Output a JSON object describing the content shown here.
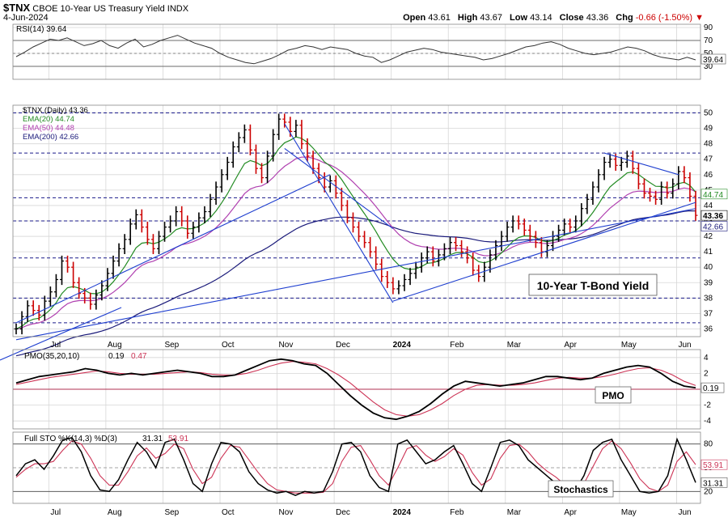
{
  "header": {
    "symbol": "$TNX",
    "description": "CBOE 10-Year US Treasury Yield INDX",
    "date": "4-Jun-2024",
    "open_label": "Open",
    "open": "43.61",
    "high_label": "High",
    "high": "43.67",
    "low_label": "Low",
    "low": "43.14",
    "close_label": "Close",
    "close": "43.36",
    "chg_label": "Chg",
    "chg": "-0.66 (-1.50%)",
    "chg_arrow": "▼"
  },
  "colors": {
    "price_up": "#000000",
    "price_down": "#cc0000",
    "ema20": "#228b22",
    "ema50": "#b040b0",
    "ema200": "#1a1a7a",
    "trendline": "#1f3fcf",
    "dash_line": "#1a1a8a",
    "grid": "#d6d6d6",
    "pmo_line": "#000000",
    "pmo_signal": "#cc3355",
    "sto_k": "#000000",
    "sto_d": "#cc3355",
    "zero_line": "#b03050"
  },
  "chart_data": [
    {
      "panel": "rsi",
      "type": "line",
      "legend": "RSI(14) 39.64",
      "last_value": "39.64",
      "ylim": [
        10,
        95
      ],
      "y_ticks": [
        90,
        70,
        50,
        30
      ],
      "reference_lines": [
        70,
        50,
        30
      ],
      "values": [
        45,
        52,
        60,
        66,
        72,
        70,
        74,
        68,
        62,
        65,
        70,
        62,
        58,
        66,
        72,
        60,
        64,
        70,
        74,
        78,
        72,
        66,
        62,
        58,
        50,
        44,
        40,
        36,
        34,
        38,
        42,
        48,
        55,
        58,
        62,
        60,
        56,
        60,
        58,
        56,
        50,
        46,
        44,
        36,
        40,
        46,
        52,
        55,
        58,
        56,
        52,
        50,
        48,
        46,
        44,
        40,
        42,
        46,
        50,
        55,
        60,
        62,
        66,
        68,
        64,
        58,
        54,
        50,
        48,
        50,
        52,
        56,
        60,
        58,
        54,
        48,
        44,
        42,
        40,
        44,
        40
      ]
    },
    {
      "panel": "price",
      "type": "candlestick",
      "legend": [
        "$TNX (Daily) 43.36",
        "EMA(20) 44.74",
        "EMA(50) 44.48",
        "EMA(200) 42.66"
      ],
      "last_value": "43.36",
      "ema20_label": "44.74",
      "ema200_label": "42.66",
      "ylim": [
        35.5,
        50.5
      ],
      "y_ticks": [
        50,
        49,
        48,
        47,
        46,
        45,
        44,
        43,
        42,
        41,
        40,
        39,
        38,
        37,
        36
      ],
      "horizontal_levels": [
        50.0,
        47.4,
        44.5,
        43.0,
        40.6,
        38.0,
        36.4
      ],
      "x_labels": [
        "Jul",
        "Aug",
        "Sep",
        "Oct",
        "Nov",
        "Dec",
        "2024",
        "Feb",
        "Mar",
        "Apr",
        "May",
        "Jun"
      ],
      "x_label_index": [
        12,
        33,
        54,
        75,
        96,
        117,
        138,
        159,
        180,
        201,
        222,
        243
      ],
      "close": [
        36.0,
        36.8,
        37.5,
        37.2,
        36.9,
        37.8,
        38.4,
        39.2,
        40.4,
        40.0,
        39.0,
        38.3,
        38.0,
        37.6,
        38.2,
        38.8,
        39.6,
        40.4,
        41.2,
        41.8,
        42.8,
        43.4,
        42.6,
        41.8,
        41.2,
        42.0,
        42.6,
        43.0,
        43.6,
        43.0,
        42.2,
        42.6,
        43.2,
        43.6,
        44.4,
        45.2,
        46.0,
        46.8,
        47.8,
        48.4,
        48.9,
        47.6,
        46.4,
        45.8,
        47.2,
        48.6,
        49.6,
        49.4,
        48.8,
        49.2,
        48.0,
        47.2,
        46.4,
        45.8,
        45.2,
        45.6,
        44.8,
        44.0,
        43.2,
        42.6,
        42.0,
        41.6,
        41.0,
        40.2,
        39.4,
        39.0,
        38.6,
        38.8,
        39.2,
        39.6,
        40.0,
        40.6,
        41.0,
        40.4,
        40.8,
        41.2,
        41.6,
        41.4,
        41.0,
        40.6,
        39.8,
        39.4,
        40.0,
        40.8,
        41.4,
        42.0,
        42.6,
        43.0,
        42.8,
        42.4,
        42.0,
        41.6,
        41.0,
        41.4,
        42.0,
        42.4,
        42.8,
        42.6,
        43.0,
        43.8,
        44.4,
        45.2,
        46.0,
        46.8,
        47.0,
        46.6,
        46.8,
        47.2,
        46.4,
        45.4,
        44.8,
        44.6,
        44.4,
        45.2,
        44.8,
        45.4,
        46.2,
        45.8,
        44.6,
        43.36
      ],
      "low_index_note": "",
      "trendlines": [
        {
          "from": [
            0,
            36.4
          ],
          "to": [
            55,
            46.0
          ]
        },
        {
          "from": [
            0,
            35.3
          ],
          "to": [
            119,
            43.8
          ]
        },
        {
          "from": [
            47,
            49.3
          ],
          "to": [
            66,
            37.7
          ]
        },
        {
          "from": [
            47,
            47.7
          ],
          "to": [
            66,
            42.5
          ]
        },
        {
          "from": [
            66,
            37.8
          ],
          "to": [
            119,
            44.2
          ]
        },
        {
          "from": [
            103,
            47.4
          ],
          "to": [
            116,
            46.0
          ]
        }
      ]
    },
    {
      "panel": "pmo",
      "type": "line",
      "legend_prefix": "PMO(35,20,10)",
      "legend_value1": "0.19",
      "legend_value2": "0.47",
      "last_value": "0.19",
      "annotation": "PMO",
      "ylim": [
        -5,
        5
      ],
      "y_ticks": [
        4,
        2,
        0,
        -2,
        -4
      ],
      "pmo": [
        0.8,
        1.2,
        1.6,
        1.8,
        2.0,
        2.2,
        2.6,
        2.4,
        2.0,
        1.8,
        2.0,
        1.8,
        2.0,
        2.2,
        2.4,
        2.2,
        2.0,
        1.6,
        1.6,
        1.8,
        2.4,
        3.0,
        3.6,
        3.8,
        3.6,
        3.2,
        3.0,
        2.0,
        0.6,
        -0.8,
        -2.0,
        -3.0,
        -3.6,
        -3.8,
        -3.4,
        -2.8,
        -1.8,
        -0.6,
        0.4,
        1.0,
        0.8,
        0.6,
        0.4,
        0.6,
        0.8,
        1.2,
        1.6,
        1.6,
        1.4,
        1.2,
        1.4,
        2.0,
        2.4,
        2.8,
        3.0,
        2.8,
        2.0,
        1.0,
        0.4,
        0.19
      ],
      "signal": [
        0.6,
        0.9,
        1.2,
        1.5,
        1.7,
        1.9,
        2.1,
        2.3,
        2.2,
        2.0,
        1.9,
        1.9,
        1.9,
        2.0,
        2.1,
        2.2,
        2.1,
        1.9,
        1.8,
        1.8,
        2.0,
        2.4,
        2.9,
        3.3,
        3.5,
        3.4,
        3.2,
        2.6,
        1.8,
        0.8,
        -0.4,
        -1.6,
        -2.6,
        -3.2,
        -3.4,
        -3.2,
        -2.6,
        -1.8,
        -0.8,
        0.0,
        0.5,
        0.6,
        0.5,
        0.5,
        0.6,
        0.8,
        1.1,
        1.4,
        1.5,
        1.4,
        1.4,
        1.6,
        1.9,
        2.3,
        2.6,
        2.7,
        2.4,
        1.8,
        1.0,
        0.47
      ]
    },
    {
      "panel": "stochastics",
      "type": "line",
      "legend_prefix": "Full STO %K(14,3) %D(3)",
      "legend_value1": "31.31",
      "legend_value2": "53.91",
      "last_value_k": "31.31",
      "last_value_d": "53.91",
      "annotation": "Stochastics",
      "ylim": [
        5,
        95
      ],
      "y_ticks": [
        80,
        50,
        20
      ],
      "reference_lines": [
        80,
        50,
        20
      ],
      "k": [
        40,
        55,
        60,
        48,
        65,
        85,
        88,
        70,
        40,
        22,
        20,
        35,
        60,
        82,
        70,
        50,
        82,
        86,
        60,
        30,
        20,
        55,
        82,
        80,
        70,
        45,
        30,
        22,
        18,
        20,
        15,
        20,
        18,
        20,
        45,
        80,
        82,
        70,
        40,
        25,
        20,
        80,
        85,
        70,
        55,
        60,
        70,
        78,
        55,
        30,
        20,
        50,
        82,
        85,
        78,
        60,
        50,
        40,
        30,
        22,
        20,
        40,
        72,
        82,
        86,
        60,
        40,
        20,
        18,
        20,
        40,
        86,
        60,
        31.31
      ],
      "d": [
        38,
        48,
        55,
        55,
        58,
        72,
        84,
        80,
        62,
        40,
        28,
        28,
        45,
        65,
        75,
        62,
        68,
        80,
        74,
        48,
        30,
        38,
        62,
        78,
        76,
        60,
        44,
        30,
        22,
        20,
        18,
        18,
        18,
        19,
        30,
        58,
        76,
        78,
        60,
        40,
        28,
        50,
        74,
        78,
        66,
        58,
        64,
        74,
        66,
        44,
        28,
        36,
        62,
        78,
        80,
        70,
        56,
        46,
        38,
        28,
        22,
        30,
        52,
        74,
        84,
        74,
        56,
        36,
        24,
        20,
        28,
        58,
        70,
        53.91
      ]
    }
  ]
}
